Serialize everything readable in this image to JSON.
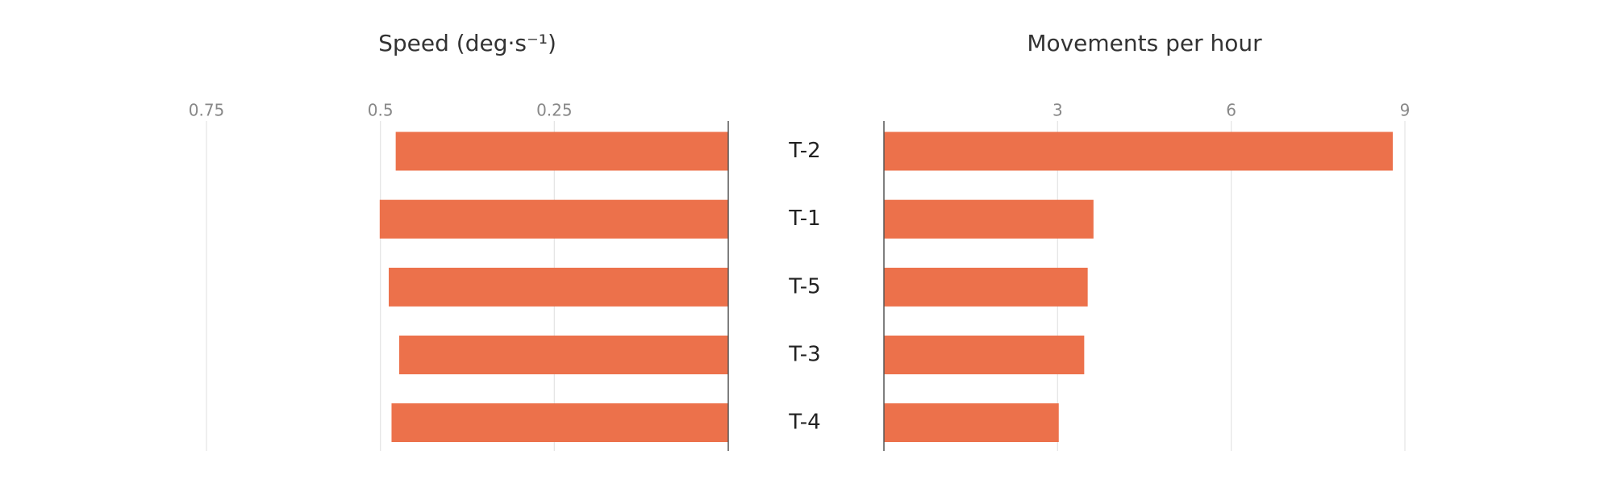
{
  "chart_data": [
    {
      "type": "barh",
      "title": "Speed (deg·s⁻¹)",
      "x_reversed": true,
      "categories": [
        "T-2",
        "T-1",
        "T-5",
        "T-3",
        "T-4"
      ],
      "values": [
        0.478,
        0.501,
        0.488,
        0.473,
        0.484
      ],
      "color": "#ec714b",
      "xlim": [
        0,
        0.75
      ],
      "xticks": [
        0.75,
        0.5,
        0.25
      ],
      "grid": true
    },
    {
      "type": "barh",
      "title": "Movements per hour",
      "x_reversed": false,
      "values": [
        8.79,
        3.62,
        3.52,
        3.46,
        3.02
      ],
      "color": "#ec714b",
      "xlim": [
        0,
        9
      ],
      "xticks": [
        3,
        6,
        9
      ],
      "grid": true
    }
  ]
}
